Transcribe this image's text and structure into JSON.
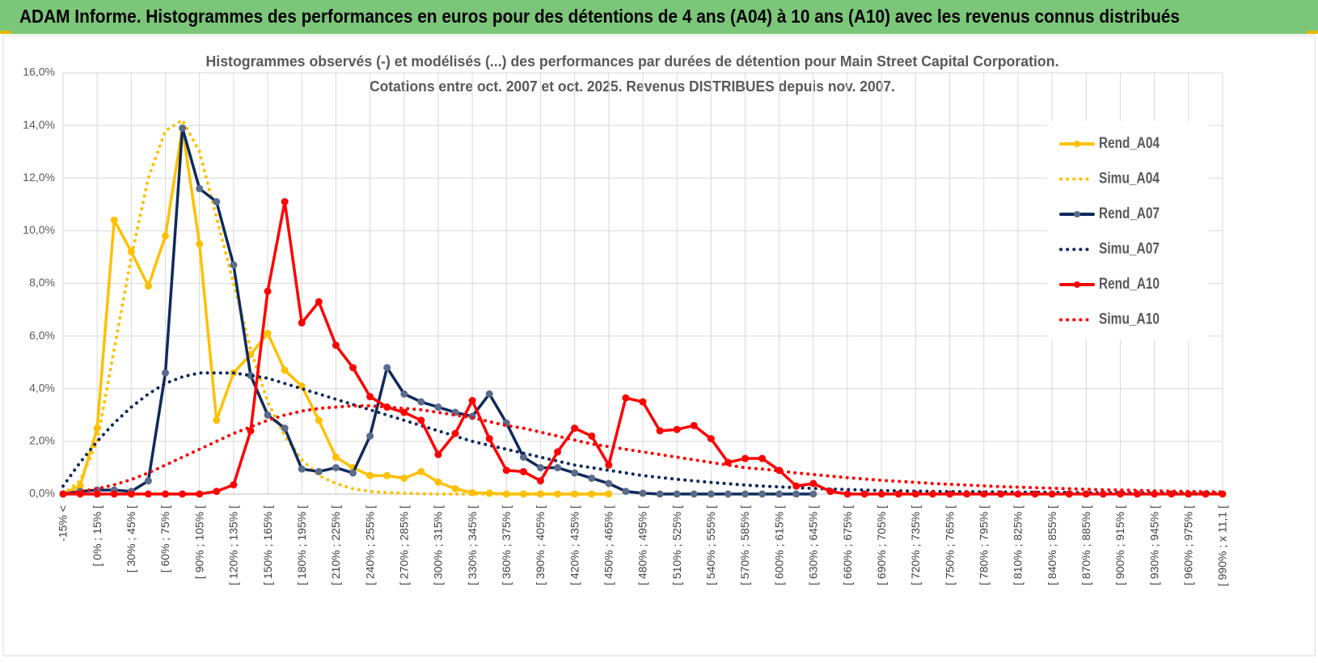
{
  "header": {
    "title": "ADAM Informe. Histogrammes des performances en euros pour des détentions de 4 ans (A04) à 10 ans (A10) avec les revenus connus distribués"
  },
  "chart_data": {
    "type": "line",
    "title": [
      "Histogrammes observés (-) et modélisés (...) des performances par durées de détention pour Main Street Capital Corporation.",
      "Cotations entre oct. 2007 et oct. 2025. Revenus DISTRIBUES depuis nov. 2007."
    ],
    "categories": [
      "-15% <",
      null,
      "[ 0% ; 15% [",
      null,
      "[ 30% ; 45% [",
      null,
      "[ 60% ; 75% [",
      null,
      "[ 90% ; 105% [",
      null,
      "[ 120% ; 135% [",
      null,
      "[ 150% ; 165% [",
      null,
      "[ 180% ; 195% [",
      null,
      "[ 210% ; 225% [",
      null,
      "[ 240% ; 255% [",
      null,
      "[ 270% ; 285% [",
      null,
      "[ 300% ; 315% [",
      null,
      "[ 330% ; 345% [",
      null,
      "[ 360% ; 375% [",
      null,
      "[ 390% ; 405% [",
      null,
      "[ 420% ; 435% [",
      null,
      "[ 450% ; 465% [",
      null,
      "[ 480% ; 495% [",
      null,
      "[ 510% ; 525% [",
      null,
      "[ 540% ; 555% [",
      null,
      "[ 570% ; 585% [",
      null,
      "[ 600% ; 615% [",
      null,
      "[ 630% ; 645% [",
      null,
      "[ 660% ; 675% [",
      null,
      "[ 690% ; 705% [",
      null,
      "[ 720% ; 735% [",
      null,
      "[ 750% ; 765% [",
      null,
      "[ 780% ; 795% [",
      null,
      "[ 810% ; 825% [",
      null,
      "[ 840% ; 855% [",
      null,
      "[ 870% ; 885% [",
      null,
      "[ 900% ; 915% [",
      null,
      "[ 930% ; 945% [",
      null,
      "[ 960% ; 975% [",
      null,
      "[ 990% ; x 11,1 ["
    ],
    "ylim": [
      0,
      16
    ],
    "yticks": [
      {
        "value": 0,
        "label": "0,0%"
      },
      {
        "value": 2,
        "label": "2,0%"
      },
      {
        "value": 4,
        "label": "4,0%"
      },
      {
        "value": 6,
        "label": "6,0%"
      },
      {
        "value": 8,
        "label": "8,0%"
      },
      {
        "value": 10,
        "label": "10,0%"
      },
      {
        "value": 12,
        "label": "12,0%"
      },
      {
        "value": 14,
        "label": "14,0%"
      },
      {
        "value": 16,
        "label": "16,0%"
      }
    ],
    "grid": true,
    "legend": "right",
    "series": [
      {
        "name": "Rend_A04",
        "color": "#ffc000",
        "style": "solid",
        "markers": true,
        "values": [
          0,
          0.3,
          2.5,
          10.4,
          9.2,
          7.9,
          9.8,
          13.9,
          9.5,
          2.8,
          4.6,
          5.3,
          6.1,
          4.7,
          4.1,
          2.8,
          1.4,
          1.0,
          0.7,
          0.7,
          0.6,
          0.85,
          0.45,
          0.2,
          0.05,
          0.03,
          0,
          0,
          0,
          0,
          0,
          0,
          0,
          null,
          null,
          null,
          null,
          null,
          null,
          null,
          null,
          null,
          null,
          null,
          null,
          null,
          null,
          null,
          null,
          null,
          null,
          null,
          null,
          null,
          null,
          null,
          null,
          null,
          null,
          null,
          null,
          null,
          null,
          null,
          null,
          null,
          null,
          null,
          null
        ]
      },
      {
        "name": "Simu_A04",
        "color": "#ffc000",
        "style": "dotted",
        "markers": false,
        "values": [
          0,
          0.5,
          2,
          5.5,
          9,
          12,
          13.8,
          14.2,
          13,
          10.5,
          8,
          5.5,
          3.5,
          2.2,
          1.3,
          0.7,
          0.4,
          0.2,
          0.1,
          0.05,
          0.03,
          0.01,
          0,
          0,
          0,
          0,
          0,
          0,
          0,
          0,
          0,
          0,
          0,
          null,
          null,
          null,
          null,
          null,
          null,
          null,
          null,
          null,
          null,
          null,
          null,
          null,
          null,
          null,
          null,
          null,
          null,
          null,
          null,
          null,
          null,
          null,
          null,
          null,
          null,
          null,
          null,
          null,
          null,
          null,
          null,
          null,
          null,
          null,
          null
        ]
      },
      {
        "name": "Rend_A07",
        "color": "#0f2a5c",
        "marker_color": "#5b6b8c",
        "style": "solid",
        "markers": true,
        "values": [
          0,
          0.1,
          0.15,
          0.15,
          0.1,
          0.5,
          4.6,
          13.9,
          11.6,
          11.1,
          8.7,
          4.5,
          3.0,
          2.5,
          0.95,
          0.85,
          1.0,
          0.8,
          2.2,
          4.8,
          3.8,
          3.5,
          3.3,
          3.1,
          2.95,
          3.8,
          2.7,
          1.4,
          1.0,
          1.0,
          0.8,
          0.6,
          0.4,
          0.1,
          0.03,
          0,
          0,
          0,
          0,
          0,
          0,
          0,
          0,
          0,
          0,
          null,
          null,
          null,
          null,
          null,
          null,
          null,
          null,
          null,
          null,
          null,
          null,
          null,
          null,
          null,
          null,
          null,
          null,
          null,
          null,
          null,
          null,
          null,
          null
        ]
      },
      {
        "name": "Simu_A07",
        "color": "#0f2a5c",
        "style": "dotted",
        "markers": false,
        "values": [
          0.3,
          1.2,
          2.0,
          2.7,
          3.3,
          3.8,
          4.2,
          4.45,
          4.6,
          4.6,
          4.6,
          4.5,
          4.4,
          4.2,
          4.0,
          3.8,
          3.6,
          3.4,
          3.2,
          3.0,
          2.8,
          2.6,
          2.4,
          2.2,
          2.0,
          1.85,
          1.7,
          1.55,
          1.4,
          1.25,
          1.1,
          1.0,
          0.9,
          0.8,
          0.7,
          0.63,
          0.56,
          0.5,
          0.44,
          0.39,
          0.34,
          0.3,
          0.27,
          0.24,
          0.21,
          0.19,
          0.17,
          0.15,
          0.13,
          0.12,
          0.11,
          0.1,
          0.09,
          0.09,
          0.08,
          0.08,
          0.07,
          0.07,
          0.06,
          0.06,
          0.05,
          0.05,
          0.05,
          0.04,
          0.04,
          0.04,
          0.03,
          0.03,
          0.03
        ]
      },
      {
        "name": "Rend_A10",
        "color": "#ff0000",
        "style": "solid",
        "markers": true,
        "values": [
          0,
          0,
          0,
          0,
          0,
          0,
          0,
          0,
          0,
          0.1,
          0.35,
          2.4,
          7.7,
          11.1,
          6.5,
          7.3,
          5.65,
          4.8,
          3.7,
          3.3,
          3.1,
          2.8,
          1.5,
          2.3,
          3.55,
          2.1,
          0.9,
          0.85,
          0.5,
          1.6,
          2.5,
          2.2,
          1.1,
          3.65,
          3.5,
          2.4,
          2.45,
          2.6,
          2.1,
          1.2,
          1.35,
          1.35,
          0.9,
          0.3,
          0.4,
          0.1,
          0,
          0,
          0,
          0,
          0,
          0,
          0,
          0,
          0,
          0,
          0,
          0,
          0,
          0,
          0,
          0,
          0,
          0,
          0,
          0,
          0,
          0,
          0
        ]
      },
      {
        "name": "Simu_A10",
        "color": "#ff0000",
        "style": "dotted",
        "markers": false,
        "values": [
          0,
          0.1,
          0.2,
          0.35,
          0.55,
          0.8,
          1.1,
          1.4,
          1.7,
          2.0,
          2.3,
          2.55,
          2.8,
          3.0,
          3.15,
          3.25,
          3.3,
          3.35,
          3.35,
          3.3,
          3.25,
          3.2,
          3.1,
          3.0,
          2.9,
          2.75,
          2.6,
          2.5,
          2.35,
          2.2,
          2.05,
          1.9,
          1.8,
          1.7,
          1.6,
          1.5,
          1.4,
          1.3,
          1.2,
          1.1,
          1.0,
          0.95,
          0.88,
          0.8,
          0.74,
          0.68,
          0.62,
          0.57,
          0.52,
          0.48,
          0.44,
          0.4,
          0.37,
          0.34,
          0.31,
          0.28,
          0.26,
          0.24,
          0.22,
          0.2,
          0.18,
          0.16,
          0.15,
          0.14,
          0.12,
          0.11,
          0.1,
          0.09,
          0.08
        ]
      }
    ]
  }
}
